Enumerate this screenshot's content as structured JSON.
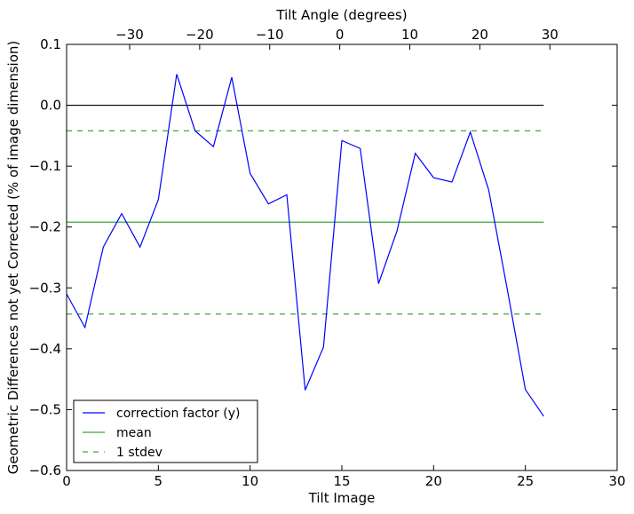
{
  "chart_data": {
    "type": "line",
    "xlabel": "Tilt Image",
    "ylabel": "Geometric Differences not yet Corrected (% of image dimension)",
    "top_xlabel": "Tilt Angle (degrees)",
    "xlim": [
      0,
      30
    ],
    "ylim": [
      -0.6,
      0.1
    ],
    "x_ticks": [
      0,
      5,
      10,
      15,
      20,
      25,
      30
    ],
    "x_tick_labels": [
      "0",
      "5",
      "10",
      "15",
      "20",
      "25",
      "30"
    ],
    "y_ticks": [
      -0.6,
      -0.5,
      -0.4,
      -0.3,
      -0.2,
      -0.1,
      0.0,
      0.1
    ],
    "y_tick_labels": [
      "−0.6",
      "−0.5",
      "−0.4",
      "−0.3",
      "−0.2",
      "−0.1",
      "0.0",
      "0.1"
    ],
    "top_ticks": [
      -30,
      -20,
      -10,
      0,
      10,
      20,
      30
    ],
    "top_tick_labels": [
      "−30",
      "−20",
      "−10",
      "0",
      "10",
      "20",
      "30"
    ],
    "top_axis_map": {
      "angle_at_x0": -39,
      "degrees_per_image": 2.62
    },
    "series": [
      {
        "name": "correction factor (y)",
        "color": "#0000ff",
        "style": "solid",
        "x": [
          0,
          1,
          2,
          3,
          4,
          5,
          6,
          7,
          8,
          9,
          10,
          11,
          12,
          13,
          14,
          15,
          16,
          17,
          18,
          19,
          20,
          21,
          22,
          23,
          24,
          25,
          26
        ],
        "y": [
          -0.31,
          -0.365,
          -0.233,
          -0.178,
          -0.233,
          -0.155,
          0.051,
          -0.042,
          -0.068,
          0.046,
          -0.112,
          -0.162,
          -0.147,
          -0.468,
          -0.397,
          -0.058,
          -0.071,
          -0.293,
          -0.207,
          -0.079,
          -0.119,
          -0.126,
          -0.044,
          -0.139,
          -0.3,
          -0.467,
          -0.511
        ]
      },
      {
        "name": "mean",
        "color": "#3aa63a",
        "style": "solid",
        "x": [
          0,
          26
        ],
        "y": [
          -0.192,
          -0.192
        ]
      },
      {
        "name": "1 stdev",
        "color": "#3aa63a",
        "style": "dashed",
        "x": [
          0,
          26
        ],
        "y": [
          -0.042,
          -0.042
        ]
      },
      {
        "name": "",
        "color": "#3aa63a",
        "style": "dashed",
        "x": [
          0,
          26
        ],
        "y": [
          -0.343,
          -0.343
        ]
      },
      {
        "name": "",
        "color": "#000000",
        "style": "solid",
        "x": [
          0,
          26
        ],
        "y": [
          0.0,
          0.0
        ]
      }
    ],
    "legend": {
      "placement": "lower-left",
      "entries": [
        {
          "label": "correction factor (y)",
          "color": "#0000ff",
          "style": "solid"
        },
        {
          "label": "mean",
          "color": "#3aa63a",
          "style": "solid"
        },
        {
          "label": "1 stdev",
          "color": "#3aa63a",
          "style": "dashed"
        }
      ]
    },
    "grid": false
  }
}
